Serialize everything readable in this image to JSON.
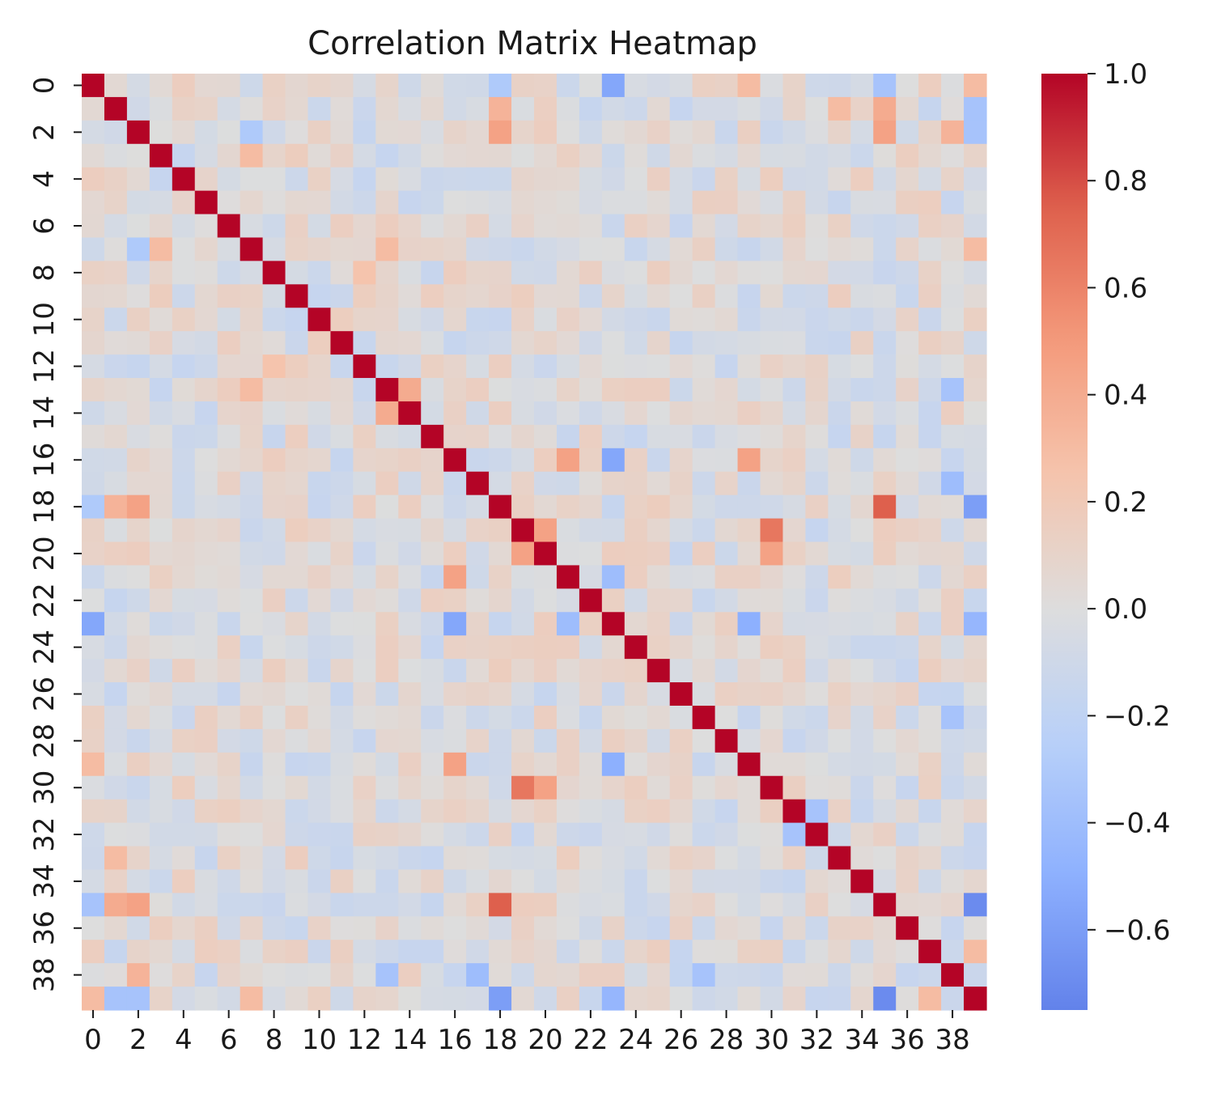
{
  "chart_data": {
    "type": "heatmap",
    "title": "Correlation Matrix Heatmap",
    "xlabel": "",
    "ylabel": "",
    "colormap": "coolwarm",
    "size": 40,
    "vmin": -0.75,
    "vmax": 1.0,
    "x_tick_labels": [
      "0",
      "2",
      "4",
      "6",
      "8",
      "10",
      "12",
      "14",
      "16",
      "18",
      "20",
      "22",
      "24",
      "26",
      "28",
      "30",
      "32",
      "34",
      "36",
      "38"
    ],
    "y_tick_labels": [
      "0",
      "2",
      "4",
      "6",
      "8",
      "10",
      "12",
      "14",
      "16",
      "18",
      "20",
      "22",
      "24",
      "26",
      "28",
      "30",
      "32",
      "34",
      "36",
      "38"
    ],
    "colorbar_ticks": [
      1.0,
      0.8,
      0.6,
      0.4,
      0.2,
      0.0,
      -0.2,
      -0.4,
      -0.6
    ],
    "colorbar_tick_labels": [
      "1.0",
      "0.8",
      "0.6",
      "0.4",
      "0.2",
      "0.0",
      "−0.2",
      "−0.4",
      "−0.6"
    ],
    "background_level": 0.0,
    "diagonal": 1.0,
    "notable_correlations": [
      {
        "i": 0,
        "j": 23,
        "value": -0.55
      },
      {
        "i": 0,
        "j": 39,
        "value": 0.3
      },
      {
        "i": 0,
        "j": 29,
        "value": 0.3
      },
      {
        "i": 0,
        "j": 35,
        "value": -0.35
      },
      {
        "i": 0,
        "j": 18,
        "value": -0.3
      },
      {
        "i": 1,
        "j": 18,
        "value": 0.35
      },
      {
        "i": 1,
        "j": 35,
        "value": 0.4
      },
      {
        "i": 1,
        "j": 39,
        "value": -0.35
      },
      {
        "i": 1,
        "j": 33,
        "value": 0.3
      },
      {
        "i": 2,
        "j": 18,
        "value": 0.45
      },
      {
        "i": 2,
        "j": 35,
        "value": 0.45
      },
      {
        "i": 2,
        "j": 38,
        "value": 0.35
      },
      {
        "i": 2,
        "j": 39,
        "value": -0.35
      },
      {
        "i": 2,
        "j": 7,
        "value": -0.3
      },
      {
        "i": 3,
        "j": 7,
        "value": 0.3
      },
      {
        "i": 7,
        "j": 13,
        "value": 0.3
      },
      {
        "i": 7,
        "j": 39,
        "value": 0.3
      },
      {
        "i": 8,
        "j": 12,
        "value": 0.25
      },
      {
        "i": 13,
        "j": 14,
        "value": 0.4
      },
      {
        "i": 13,
        "j": 38,
        "value": -0.35
      },
      {
        "i": 16,
        "j": 21,
        "value": 0.45
      },
      {
        "i": 16,
        "j": 23,
        "value": -0.55
      },
      {
        "i": 16,
        "j": 29,
        "value": 0.45
      },
      {
        "i": 17,
        "j": 38,
        "value": -0.4
      },
      {
        "i": 18,
        "j": 35,
        "value": 0.75
      },
      {
        "i": 18,
        "j": 39,
        "value": -0.6
      },
      {
        "i": 19,
        "j": 20,
        "value": 0.45
      },
      {
        "i": 19,
        "j": 30,
        "value": 0.65
      },
      {
        "i": 20,
        "j": 30,
        "value": 0.45
      },
      {
        "i": 21,
        "j": 23,
        "value": -0.4
      },
      {
        "i": 23,
        "j": 29,
        "value": -0.5
      },
      {
        "i": 23,
        "j": 39,
        "value": -0.45
      },
      {
        "i": 31,
        "j": 32,
        "value": -0.35
      },
      {
        "i": 35,
        "j": 39,
        "value": -0.7
      },
      {
        "i": 27,
        "j": 38,
        "value": -0.35
      },
      {
        "i": 39,
        "j": 37,
        "value": 0.3
      }
    ]
  }
}
